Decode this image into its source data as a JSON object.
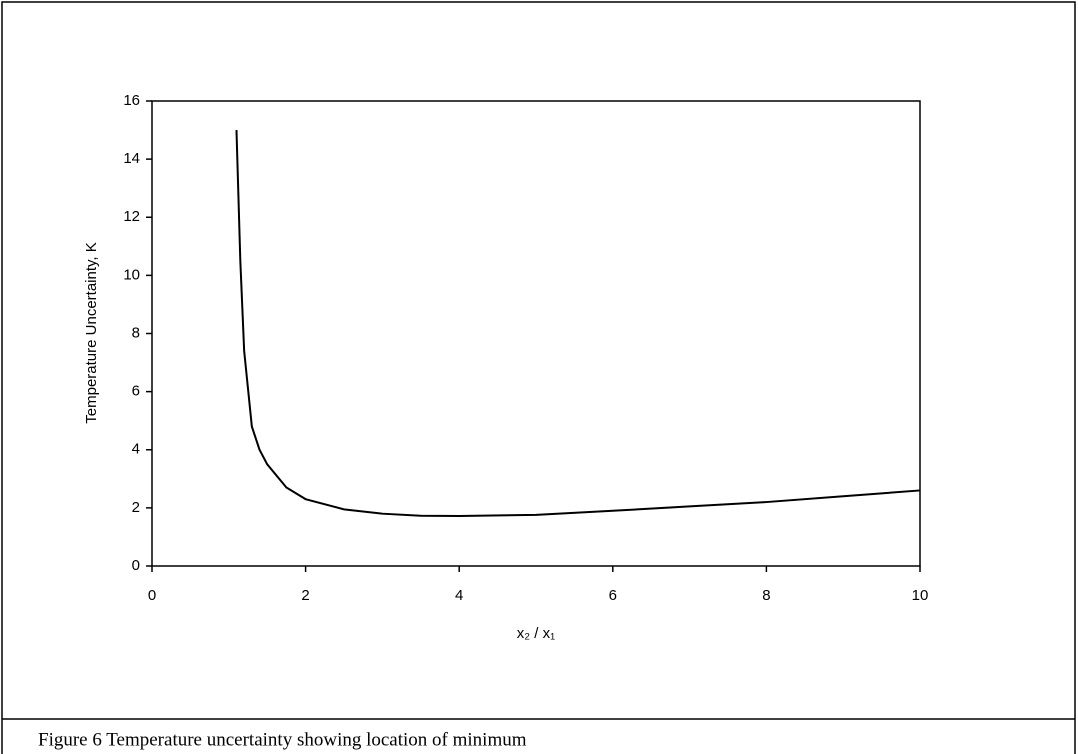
{
  "chart_data": {
    "type": "line",
    "x_label": "x₂ / x₁",
    "y_label": "Temperature Uncertainty, K",
    "caption": "Figure 6  Temperature uncertainty showing location of minimum",
    "x": [
      1.1,
      1.15,
      1.2,
      1.3,
      1.4,
      1.5,
      1.75,
      2,
      2.5,
      3,
      3.5,
      4,
      5,
      6,
      7,
      8,
      9,
      10
    ],
    "series": [
      {
        "color": "#000000",
        "values": [
          15,
          10.5,
          7.4,
          4.8,
          4.0,
          3.5,
          2.7,
          2.3,
          1.95,
          1.8,
          1.73,
          1.72,
          1.76,
          1.9,
          2.05,
          2.2,
          2.4,
          2.6
        ]
      }
    ],
    "xlim": [
      0,
      10
    ],
    "xticks": [
      0,
      2,
      4,
      6,
      8,
      10
    ],
    "ylim": [
      0,
      16
    ],
    "yticks": [
      0,
      2,
      4,
      6,
      8,
      10,
      12,
      14,
      16
    ],
    "grid": false
  }
}
